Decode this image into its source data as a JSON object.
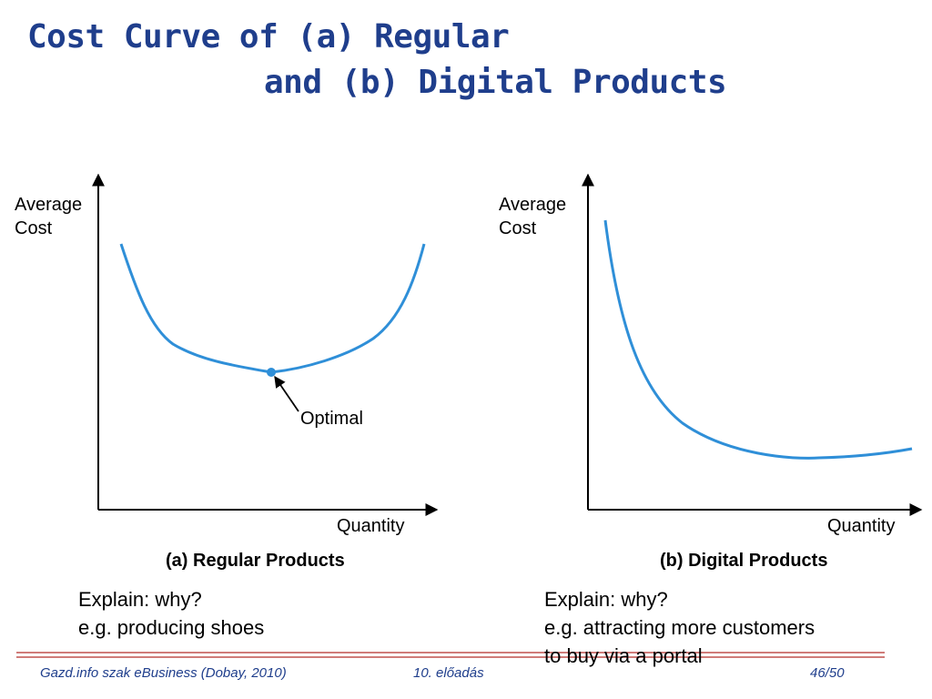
{
  "title": {
    "line1": "Cost Curve of  (a) Regular",
    "line2": "and (b) Digital Products"
  },
  "diagrams": [
    {
      "id": "a",
      "y_label_line1": "Average",
      "y_label_line2": "Cost",
      "x_label": "Quantity",
      "annotation": "Optimal",
      "caption": "(a) Regular Products"
    },
    {
      "id": "b",
      "y_label_line1": "Average",
      "y_label_line2": "Cost",
      "x_label": "Quantity",
      "caption": "(b) Digital Products"
    }
  ],
  "notes": {
    "left": {
      "line1": "Explain: why?",
      "line2": "e.g. producing shoes"
    },
    "right": {
      "line1": "Explain: why?",
      "line2": "e.g. attracting more customers",
      "line3": "to buy via a portal"
    }
  },
  "footer": {
    "source": "Gazd.info szak eBusiness (Dobay, 2010)",
    "lecture": "10. előadás",
    "page": "46/50"
  },
  "colors": {
    "title": "#1f3e8c",
    "curve": "#2f8fd8",
    "divider": "#c0504d"
  }
}
